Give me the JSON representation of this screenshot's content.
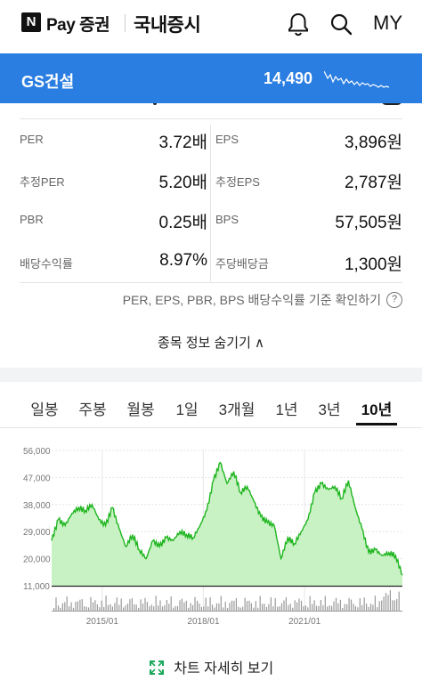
{
  "topbar": {
    "logo_letter": "N",
    "brand": "Pay 증권",
    "section": "국내증시",
    "my_label": "MY",
    "icons": [
      "bell-icon",
      "search-icon"
    ]
  },
  "stock": {
    "name": "GS건설",
    "price": "14,490",
    "color": "#2a7de1"
  },
  "metrics": {
    "left": [
      {
        "label": "PER",
        "value": "3.72배"
      },
      {
        "label": "추정PER",
        "value": "5.20배"
      },
      {
        "label": "PBR",
        "value": "0.25배"
      },
      {
        "label": "배당수익률",
        "value": "8.97%"
      }
    ],
    "right": [
      {
        "label": "EPS",
        "value": "3,896원"
      },
      {
        "label": "추정EPS",
        "value": "2,787원"
      },
      {
        "label": "BPS",
        "value": "57,505원"
      },
      {
        "label": "주당배당금",
        "value": "1,300원"
      }
    ]
  },
  "criteria_text": "PER, EPS, PBR, BPS 배당수익률 기준 확인하기",
  "criteria_icon": "?",
  "hide_info_text": "종목 정보 숨기기 ∧",
  "tabs": {
    "items": [
      "일봉",
      "주봉",
      "월봉",
      "1일",
      "3개월",
      "1년",
      "3년",
      "10년"
    ],
    "active_index": 7
  },
  "chart_data": {
    "type": "area",
    "ylim": [
      11000,
      56000
    ],
    "yticks": [
      "56,000",
      "47,000",
      "38,000",
      "29,000",
      "20,000",
      "11,000"
    ],
    "xticks": [
      "2015/01",
      "2018/01",
      "2021/01"
    ],
    "line_color": "#1fb51f",
    "fill_color": "#c9f2c4",
    "x": [
      2013.5,
      2013.7,
      2013.9,
      2014.1,
      2014.3,
      2014.5,
      2014.7,
      2014.9,
      2015.1,
      2015.3,
      2015.5,
      2015.7,
      2015.9,
      2016.1,
      2016.3,
      2016.5,
      2016.7,
      2016.9,
      2017.1,
      2017.3,
      2017.5,
      2017.7,
      2017.9,
      2018.1,
      2018.3,
      2018.5,
      2018.7,
      2018.9,
      2019.1,
      2019.3,
      2019.5,
      2019.7,
      2019.9,
      2020.1,
      2020.3,
      2020.5,
      2020.7,
      2020.9,
      2021.1,
      2021.3,
      2021.5,
      2021.7,
      2021.9,
      2022.1,
      2022.3,
      2022.5,
      2022.7,
      2022.9,
      2023.1,
      2023.3,
      2023.5,
      2023.7,
      2023.9
    ],
    "values": [
      26000,
      33000,
      31000,
      35000,
      37000,
      36000,
      38000,
      33000,
      31000,
      37000,
      30000,
      24000,
      28000,
      23000,
      20000,
      26000,
      24000,
      27000,
      26000,
      29000,
      28000,
      27000,
      31000,
      36000,
      46000,
      52000,
      45000,
      49000,
      42000,
      44000,
      39000,
      34000,
      32000,
      31000,
      20000,
      27000,
      25000,
      29000,
      33000,
      42000,
      45000,
      43000,
      44000,
      40000,
      46000,
      37000,
      30000,
      22000,
      23000,
      21000,
      22000,
      21000,
      14490
    ],
    "volume_label": ""
  },
  "chart_link": "차트 자세히 보기"
}
